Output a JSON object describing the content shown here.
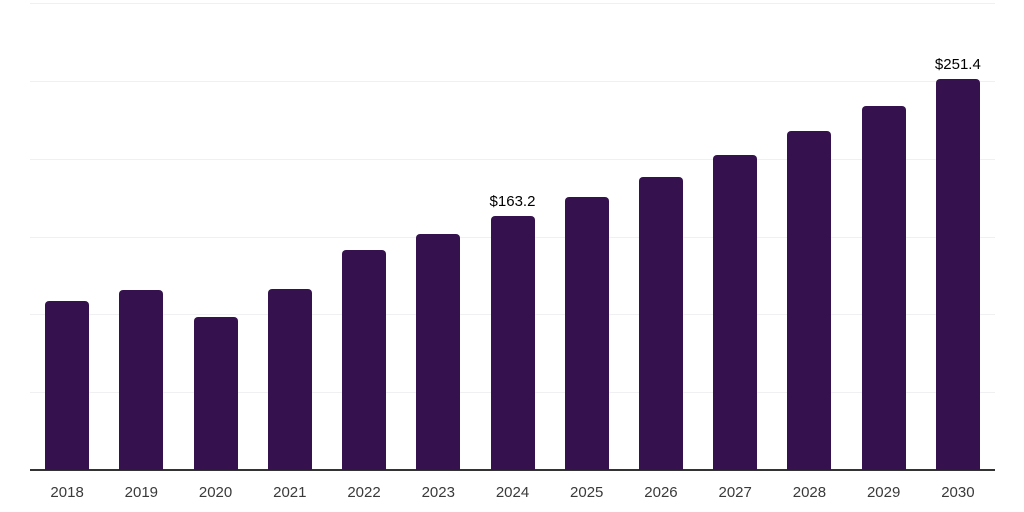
{
  "chart_data": {
    "type": "bar",
    "categories": [
      "2018",
      "2019",
      "2020",
      "2021",
      "2022",
      "2023",
      "2024",
      "2025",
      "2026",
      "2027",
      "2028",
      "2029",
      "2030"
    ],
    "values": [
      108.5,
      115.8,
      98.5,
      116.3,
      141.4,
      151.9,
      163.2,
      175.4,
      188.5,
      202.6,
      217.7,
      234.0,
      251.4
    ],
    "value_labels": [
      "",
      "",
      "",
      "",
      "",
      "",
      "$163.2",
      "",
      "",
      "",
      "",
      "",
      "$251.4"
    ],
    "title": "",
    "xlabel": "",
    "ylabel": "",
    "ylim": [
      0,
      300
    ],
    "gridline_step": 50,
    "grid": "horizontal-only",
    "legend_position": "none",
    "y_axis_tick_labels_visible": false,
    "colors": {
      "bar": "#35114E",
      "axis_line": "#333333",
      "gridline": "#f0f0f2",
      "tick_label": "#3a3a3a",
      "value_label": "#000000",
      "background": "#ffffff"
    }
  }
}
